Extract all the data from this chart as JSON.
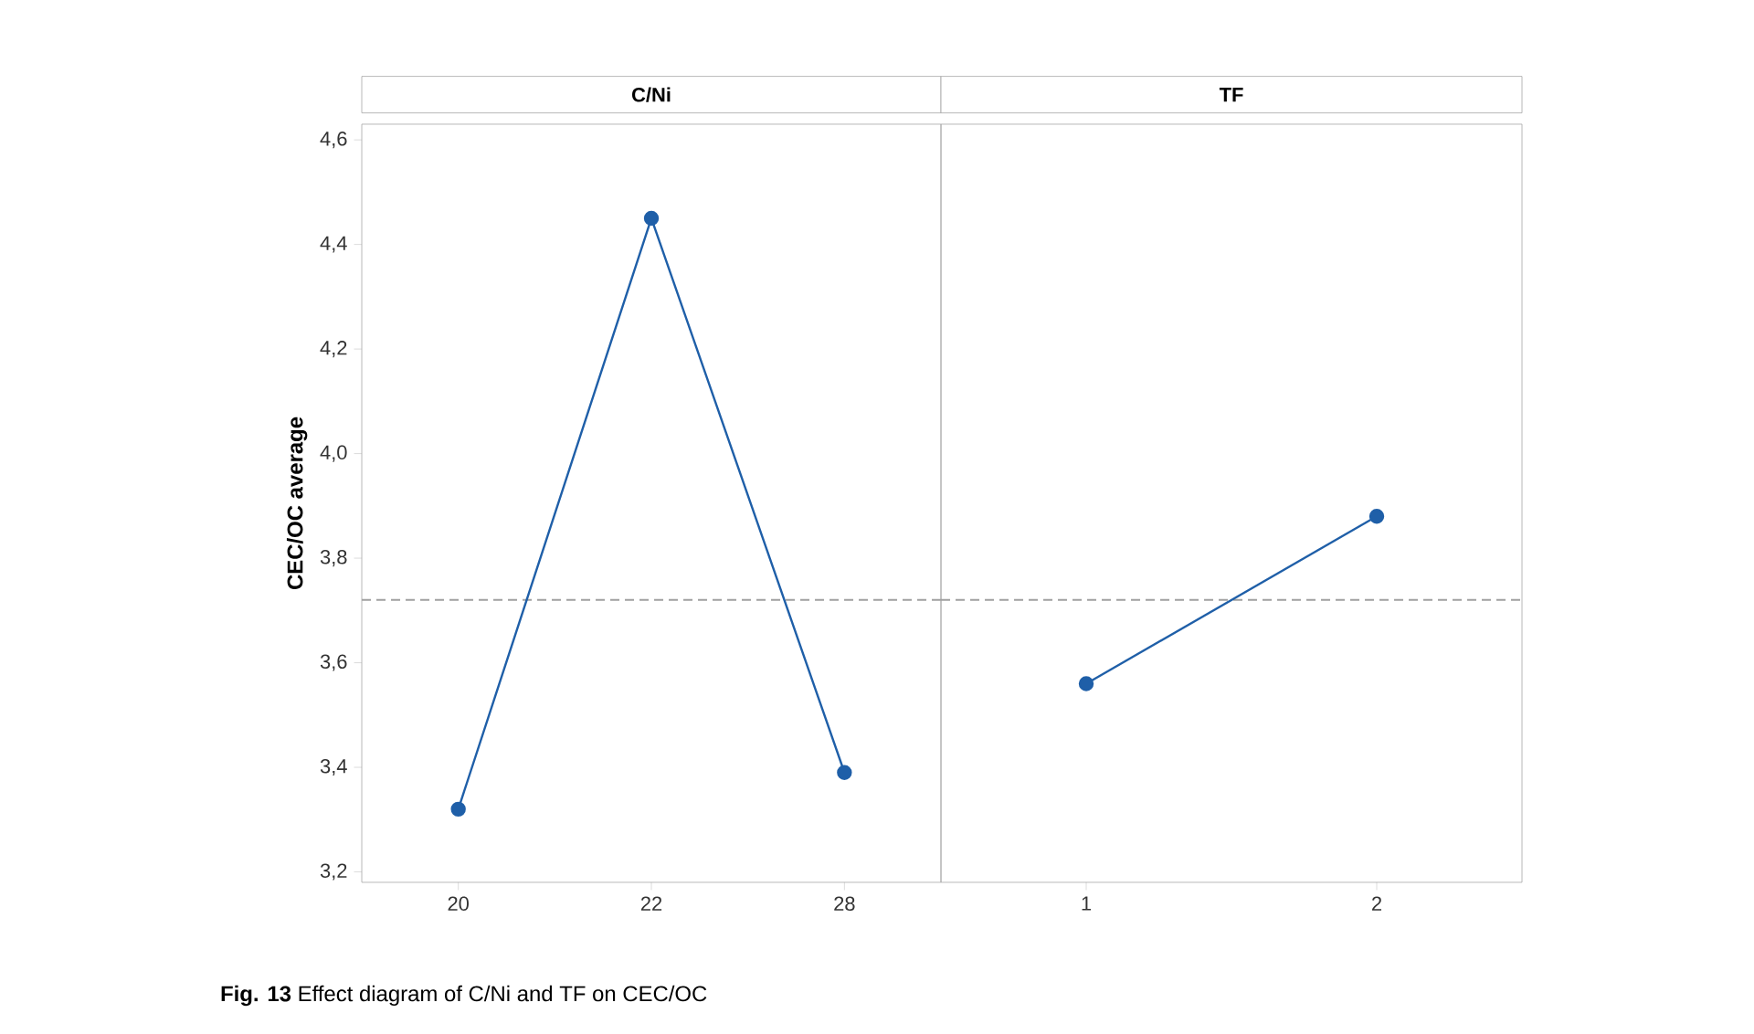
{
  "chart_data": [
    {
      "type": "line",
      "title": "C/Ni",
      "ylabel": "CEC/OC average",
      "categories": [
        "20",
        "22",
        "28"
      ],
      "series": [
        {
          "color": "#1f5fa8",
          "values": [
            3.32,
            4.45,
            3.39
          ]
        }
      ],
      "marker": "circle",
      "line_style": "solid",
      "ylim": [
        3.18,
        4.63
      ],
      "yticks": [
        {
          "value": 3.2,
          "label": "3,2"
        },
        {
          "value": 3.4,
          "label": "3,4"
        },
        {
          "value": 3.6,
          "label": "3,6"
        },
        {
          "value": 3.8,
          "label": "3,8"
        },
        {
          "value": 4.0,
          "label": "4,0"
        },
        {
          "value": 4.2,
          "label": "4,2"
        },
        {
          "value": 4.4,
          "label": "4,4"
        },
        {
          "value": 4.6,
          "label": "4,6"
        }
      ],
      "ref_lines": [
        {
          "axis": "y",
          "value": 3.72,
          "color": "#a0a0a0",
          "line_style": "dashed"
        }
      ],
      "annotations": [
        "**Fig. 13** Effect diagram of C/Ni and TF on CEC/OC"
      ]
    },
    {
      "type": "line",
      "title": "TF",
      "categories": [
        "1",
        "2"
      ],
      "series": [
        {
          "color": "#1f5fa8",
          "values": [
            3.56,
            3.88
          ]
        }
      ],
      "marker": "circle",
      "line_style": "solid",
      "ylim": [
        3.18,
        4.63
      ],
      "tick_labels": "x",
      "ref_lines": [
        {
          "axis": "y",
          "value": 3.72,
          "color": "#a0a0a0",
          "line_style": "dashed"
        }
      ]
    }
  ]
}
